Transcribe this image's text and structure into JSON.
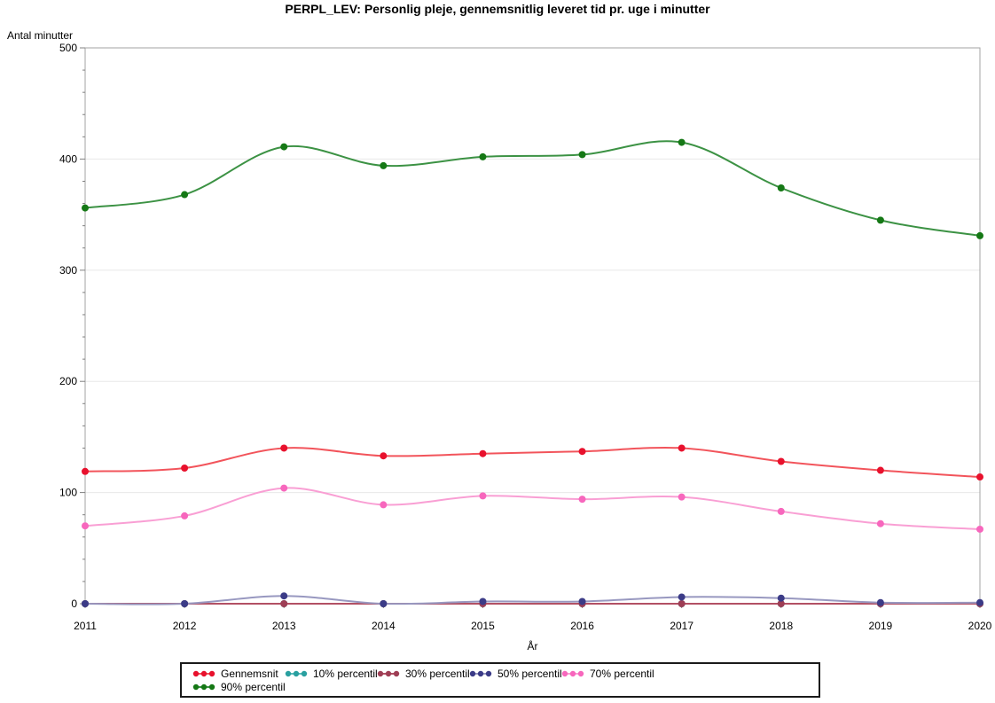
{
  "title": "PERPL_LEV: Personlig pleje, gennemsnitlig leveret tid pr. uge i minutter",
  "chart_data": {
    "type": "line",
    "title": "PERPL_LEV: Personlig pleje, gennemsnitlig leveret tid pr. uge i minutter",
    "xlabel": "År",
    "ylabel": "Antal minutter",
    "x": [
      2011,
      2012,
      2013,
      2014,
      2015,
      2016,
      2017,
      2018,
      2019,
      2020
    ],
    "ylim": [
      0,
      500
    ],
    "yticks": [
      0,
      100,
      200,
      300,
      400,
      500
    ],
    "y_minor_step": 20,
    "grid": "horizontal",
    "legend_position": "bottom",
    "series": [
      {
        "name": "Gennemsnit",
        "marker_color": "#e8112d",
        "line_color": "#f2545b",
        "values": [
          119,
          122,
          140,
          133,
          135,
          137,
          140,
          128,
          120,
          114
        ]
      },
      {
        "name": "10% percentil",
        "marker_color": "#2aa0a0",
        "line_color": "#5bbcbc",
        "values": [
          0,
          0,
          0,
          0,
          0,
          0,
          0,
          0,
          0,
          0
        ]
      },
      {
        "name": "30% percentil",
        "marker_color": "#9e3e55",
        "line_color": "#b25064",
        "values": [
          0,
          0,
          0,
          0,
          0,
          0,
          0,
          0,
          0,
          0
        ]
      },
      {
        "name": "50% percentil",
        "marker_color": "#3b3b87",
        "line_color": "#9898c0",
        "values": [
          0,
          0,
          7,
          0,
          2,
          2,
          6,
          5,
          1,
          1
        ]
      },
      {
        "name": "70% percentil",
        "marker_color": "#f767bd",
        "line_color": "#f99fd4",
        "values": [
          70,
          79,
          104,
          89,
          97,
          94,
          96,
          83,
          72,
          67
        ]
      },
      {
        "name": "90% percentil",
        "marker_color": "#157815",
        "line_color": "#3c9244",
        "values": [
          356,
          368,
          411,
          394,
          402,
          404,
          415,
          374,
          345,
          331
        ]
      }
    ]
  },
  "colors": {
    "frame": "#a3a3a3",
    "gridline": "#e8e8e8",
    "tick": "#808080",
    "text": "#000000"
  }
}
